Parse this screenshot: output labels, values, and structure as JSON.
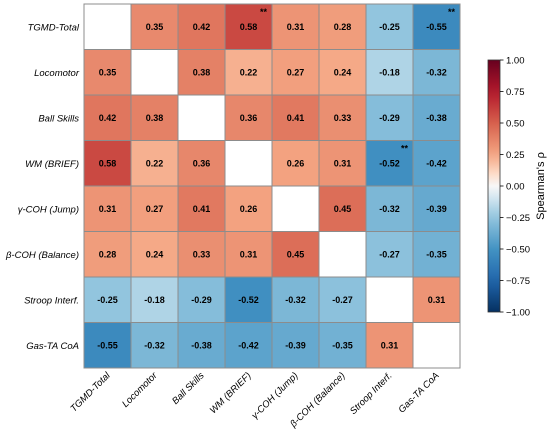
{
  "chart_data": {
    "type": "heatmap",
    "title": "",
    "row_labels": [
      "TGMD-Total",
      "Locomotor",
      "Ball Skills",
      "WM (BRIEF)",
      "γ-COH (Jump)",
      "β-COH (Balance)",
      "Stroop Interf.",
      "Gas-TA CoA"
    ],
    "col_labels": [
      "TGMD-Total",
      "Locomotor",
      "Ball Skills",
      "WM (BRIEF)",
      "γ-COH (Jump)",
      "β-COH (Balance)",
      "Stroop Interf.",
      "Gas-TA CoA"
    ],
    "values": [
      [
        null,
        0.35,
        0.42,
        0.58,
        0.31,
        0.28,
        -0.25,
        -0.55
      ],
      [
        0.35,
        null,
        0.38,
        0.22,
        0.27,
        0.24,
        -0.18,
        -0.32
      ],
      [
        0.42,
        0.38,
        null,
        0.36,
        0.41,
        0.33,
        -0.29,
        -0.38
      ],
      [
        0.58,
        0.22,
        0.36,
        null,
        0.26,
        0.31,
        -0.52,
        -0.42
      ],
      [
        0.31,
        0.27,
        0.41,
        0.26,
        null,
        0.45,
        -0.32,
        -0.39
      ],
      [
        0.28,
        0.24,
        0.33,
        0.31,
        0.45,
        null,
        -0.27,
        -0.35
      ],
      [
        -0.25,
        -0.18,
        -0.29,
        -0.52,
        -0.32,
        -0.27,
        null,
        0.31
      ],
      [
        -0.55,
        -0.32,
        -0.38,
        -0.42,
        -0.39,
        -0.35,
        0.31,
        null
      ]
    ],
    "significance": [
      {
        "row": 0,
        "col": 3,
        "mark": "**"
      },
      {
        "row": 0,
        "col": 7,
        "mark": "**"
      },
      {
        "row": 3,
        "col": 6,
        "mark": "**"
      }
    ],
    "colorbar": {
      "label": "Spearman's ρ",
      "range": [
        -1.0,
        1.0
      ],
      "ticks": [
        "1.00",
        "0.75",
        "0.50",
        "0.25",
        "0.00",
        "−0.25",
        "−0.50",
        "−0.75",
        "−1.00"
      ],
      "colormap": "RdBu_r",
      "position": "right"
    }
  }
}
